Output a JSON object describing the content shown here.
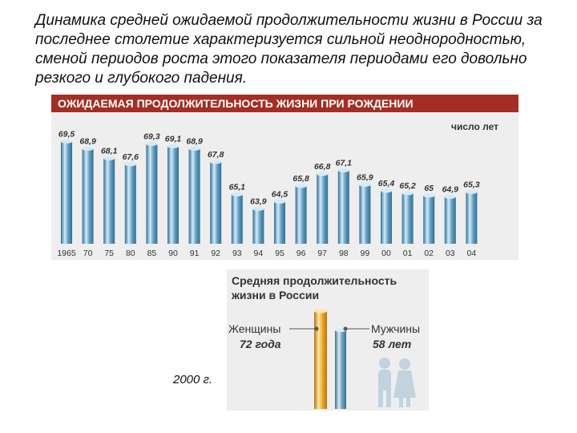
{
  "intro_text": "Динамика средней ожидаемой продолжительности жизни в России за последнее столетие характеризуется сильной неоднородностью, сменой периодов роста этого показателя периодами его довольно резкого и глубокого падения.",
  "chart_data": [
    {
      "type": "bar",
      "title": "ОЖИДАЕМАЯ ПРОДОЛЖИТЕЛЬНОСТЬ ЖИЗНИ ПРИ РОЖДЕНИИ",
      "unit_label": "число лет",
      "categories": [
        "1965",
        "70",
        "75",
        "80",
        "85",
        "90",
        "91",
        "92",
        "93",
        "94",
        "95",
        "96",
        "97",
        "98",
        "99",
        "00",
        "01",
        "02",
        "03",
        "04"
      ],
      "values": [
        69.5,
        68.9,
        68.1,
        67.6,
        69.3,
        69.1,
        68.9,
        67.8,
        65.1,
        63.9,
        64.5,
        65.8,
        66.8,
        67.1,
        65.9,
        65.4,
        65.2,
        65,
        64.9,
        65.3
      ],
      "value_labels": [
        "69,5",
        "68,9",
        "68,1",
        "67,6",
        "69,3",
        "69,1",
        "68,9",
        "67,8",
        "65,1",
        "63,9",
        "64,5",
        "65,8",
        "66,8",
        "67,1",
        "65,9",
        "65,4",
        "65,2",
        "65",
        "64,9",
        "65,3"
      ],
      "ylim": [
        61,
        71
      ],
      "grid": false,
      "colors": {
        "header_bg": "#a42e24",
        "header_text": "#ffffff",
        "panel_bg": "#eeeeee",
        "bar": "#5f9fc4",
        "bar_dark": "#2f6f95",
        "bar_light": "#d4eaf6",
        "text": "#333333"
      }
    },
    {
      "type": "bar",
      "title_line1": "Средняя продолжительность",
      "title_line2": "жизни в России",
      "categories": [
        "Женщины",
        "Мужчины"
      ],
      "values": [
        72,
        58
      ],
      "value_labels": [
        "72 года",
        "58 лет"
      ],
      "ylim": [
        0,
        72
      ],
      "colors": {
        "panel_bg": "#eeeeee",
        "women_bar": "#efa820",
        "women_dark": "#b87410",
        "women_light": "#fde7a8",
        "men_bar": "#6c9fbd",
        "men_dark": "#3c6f8d",
        "men_light": "#d8eaf5",
        "silhouette": "#c2d3de",
        "text": "#333333"
      }
    }
  ],
  "year_note": "2000 г."
}
